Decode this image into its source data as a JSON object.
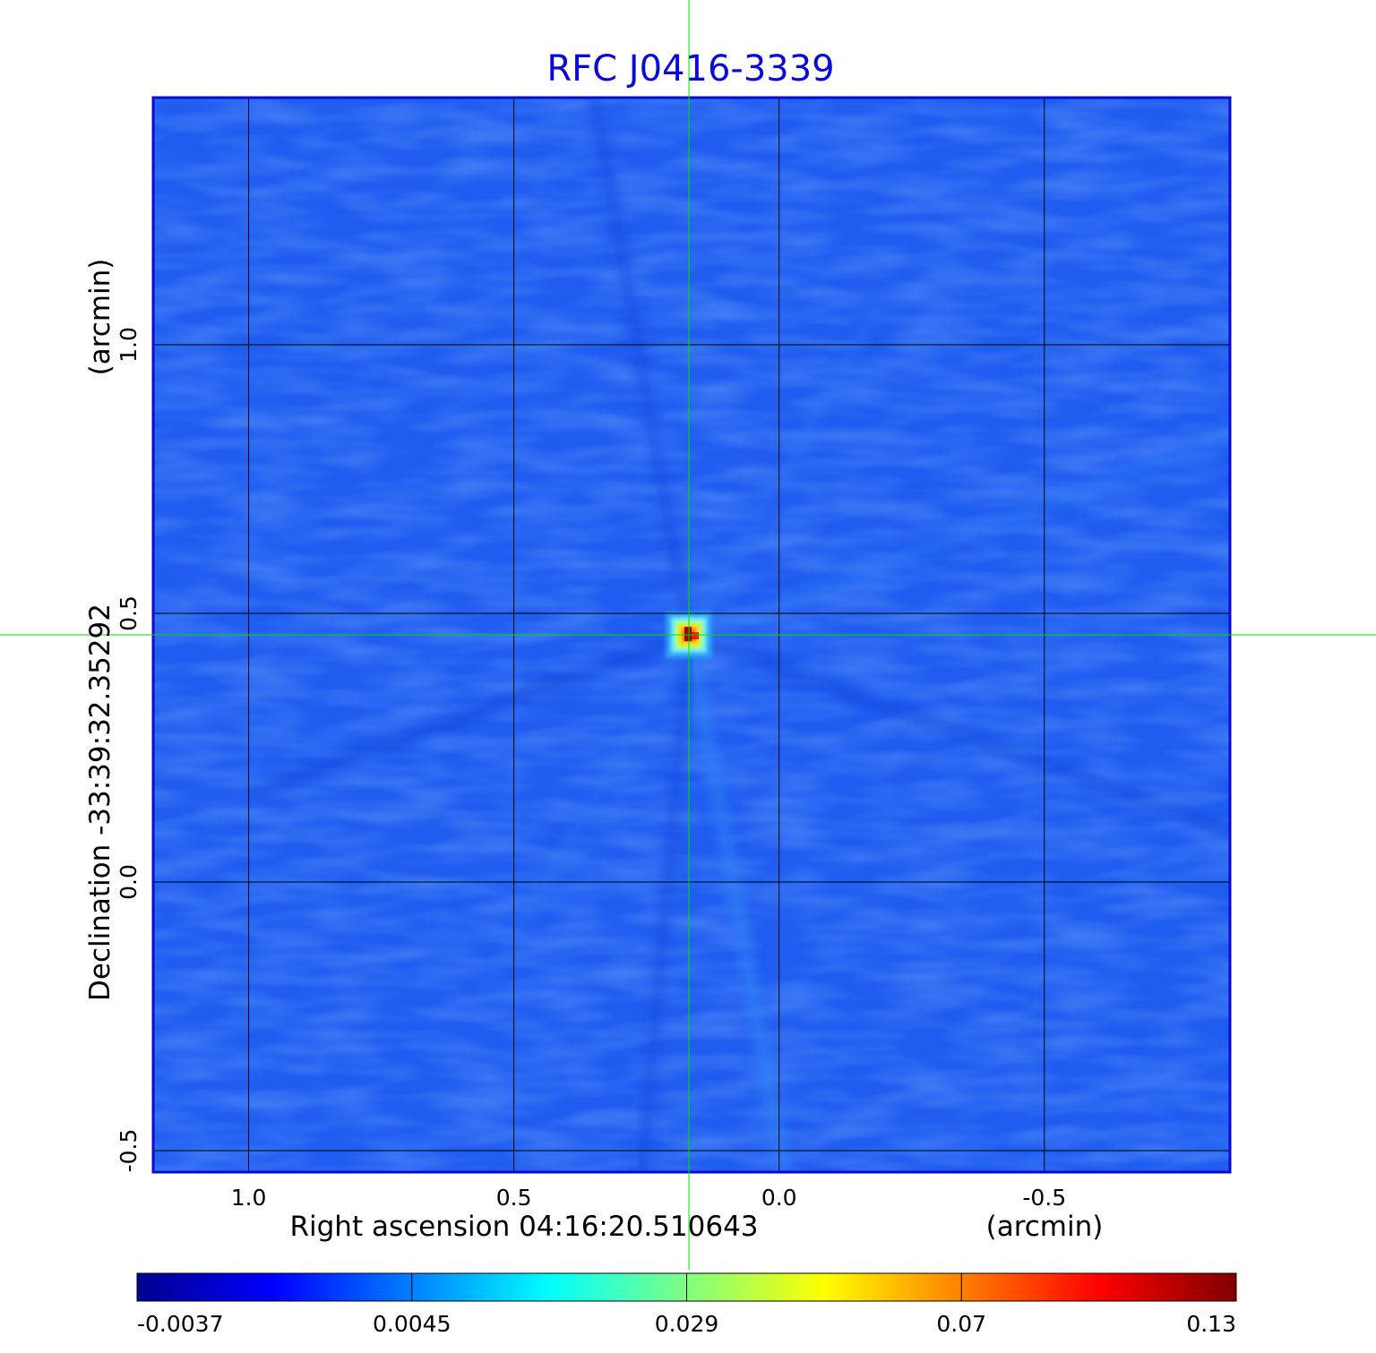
{
  "chart_data": {
    "type": "heatmap",
    "title": "RFC J0416-3339",
    "xlabel": "Right ascension  04:16:20.510643",
    "xlabel_unit": "(arcmin)",
    "ylabel": "Declination  -33:39:32.35292",
    "ylabel_unit": "(arcmin)",
    "x_ticks": [
      {
        "value": 1.0,
        "label": "1.0"
      },
      {
        "value": 0.5,
        "label": "0.5"
      },
      {
        "value": 0.0,
        "label": "0.0"
      },
      {
        "value": -0.5,
        "label": "-0.5"
      }
    ],
    "y_ticks": [
      {
        "value": 1.0,
        "label": "1.0"
      },
      {
        "value": 0.5,
        "label": "0.5"
      },
      {
        "value": 0.0,
        "label": "0.0"
      },
      {
        "value": -0.5,
        "label": "-0.5"
      }
    ],
    "xlim": [
      1.18,
      -0.85
    ],
    "ylim": [
      -0.54,
      1.46
    ],
    "grid": true,
    "source": {
      "x": 0.17,
      "y": 0.46,
      "peak": 0.13
    },
    "crosshair": {
      "x": 0.17,
      "y": 0.46
    },
    "colorbar": {
      "scale": "nonlinear",
      "tick_labels": [
        "-0.0037",
        "0.0045",
        "0.029",
        "0.07",
        "0.13"
      ],
      "tick_values": [
        -0.0037,
        0.0045,
        0.029,
        0.07,
        0.13
      ],
      "min": -0.0037,
      "max": 0.13,
      "colormap": [
        "#00008f",
        "#0000ff",
        "#0080ff",
        "#00ffff",
        "#80ff80",
        "#ffff00",
        "#ff8000",
        "#ff0000",
        "#800000"
      ]
    },
    "colors": {
      "title": "#0a0ad6",
      "background": "#1f5cf0",
      "grid": "#000000",
      "crosshair": "#00e000"
    }
  }
}
